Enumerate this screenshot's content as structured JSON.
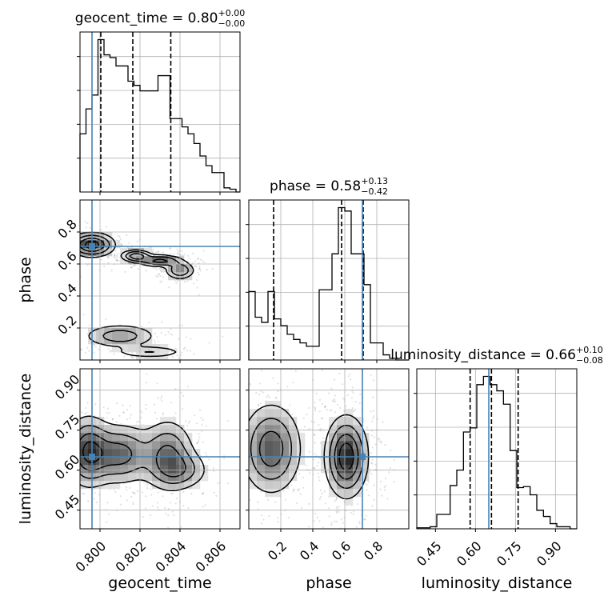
{
  "chart_data": {
    "type": "corner",
    "parameters": [
      "geocent_time",
      "phase",
      "luminosity_distance"
    ],
    "truths": {
      "geocent_time": 0.7996,
      "phase": 0.71,
      "luminosity_distance": 0.65
    },
    "truth_color": "#4682b4",
    "grid": true,
    "axes": {
      "geocent_time": {
        "lim": [
          0.799,
          0.807
        ],
        "ticks": [
          "0.800",
          "0.802",
          "0.804",
          "0.806"
        ],
        "tick_values": [
          0.8,
          0.802,
          0.804,
          0.806
        ]
      },
      "phase": {
        "lim": [
          0.0,
          1.0
        ],
        "ticks": [
          "0.2",
          "0.4",
          "0.6",
          "0.8"
        ],
        "tick_values": [
          0.2,
          0.4,
          0.6,
          0.8
        ]
      },
      "luminosity_distance": {
        "lim": [
          0.38,
          0.98
        ],
        "ticks": [
          "0.45",
          "0.60",
          "0.75",
          "0.90"
        ],
        "tick_values": [
          0.45,
          0.6,
          0.75,
          0.9
        ]
      }
    },
    "marginals": [
      {
        "parameter": "geocent_time",
        "title_param": "geocent_time = ",
        "title_value": "0.80",
        "title_plus": "+0.00",
        "title_minus": "−0.00",
        "quantiles": [
          0.80004,
          0.80164,
          0.80354
        ],
        "bins": [
          0.799,
          0.7993,
          0.7996,
          0.7999,
          0.8002,
          0.8005,
          0.8008,
          0.8011,
          0.8014,
          0.8017,
          0.802,
          0.8023,
          0.8026,
          0.8029,
          0.8032,
          0.8035,
          0.8038,
          0.8041,
          0.8044,
          0.8047,
          0.805,
          0.8053,
          0.8056,
          0.8059,
          0.8062,
          0.8065,
          0.8068,
          0.807
        ],
        "counts": [
          42,
          60,
          70,
          110,
          99,
          97,
          91,
          91,
          80,
          77,
          73,
          73,
          73,
          84,
          84,
          53,
          53,
          47,
          42,
          35,
          26,
          19,
          14,
          14,
          3,
          2,
          0
        ]
      },
      {
        "parameter": "phase",
        "title_param": "phase = ",
        "title_value": "0.58",
        "title_plus": "+0.13",
        "title_minus": "−0.42",
        "quantiles": [
          0.155,
          0.58,
          0.715
        ],
        "bins": [
          0.0,
          0.04,
          0.08,
          0.12,
          0.16,
          0.2,
          0.24,
          0.28,
          0.32,
          0.36,
          0.4,
          0.44,
          0.48,
          0.52,
          0.56,
          0.6,
          0.64,
          0.68,
          0.72,
          0.76,
          0.8,
          0.84,
          0.88,
          0.92,
          0.96,
          1.0
        ],
        "counts": [
          40,
          25,
          22,
          40,
          24,
          20,
          15,
          12,
          10,
          8,
          8,
          41,
          41,
          62,
          89,
          87,
          62,
          62,
          44,
          10,
          10,
          3,
          1,
          0,
          0
        ]
      },
      {
        "parameter": "luminosity_distance",
        "title_param": "luminosity_distance = ",
        "title_value": "0.66",
        "title_plus": "+0.10",
        "title_minus": "−0.08",
        "quantiles": [
          0.58,
          0.66,
          0.76
        ],
        "bins": [
          0.38,
          0.405,
          0.43,
          0.455,
          0.48,
          0.505,
          0.53,
          0.555,
          0.58,
          0.605,
          0.63,
          0.655,
          0.68,
          0.705,
          0.73,
          0.755,
          0.78,
          0.805,
          0.83,
          0.855,
          0.88,
          0.905,
          0.93,
          0.955,
          0.98
        ],
        "counts": [
          1,
          1,
          2,
          14,
          14,
          42,
          57,
          94,
          98,
          140,
          148,
          140,
          134,
          121,
          76,
          40,
          41,
          33,
          18,
          12,
          5,
          2,
          2,
          0
        ]
      }
    ],
    "contours": [
      {
        "x": "geocent_time",
        "y": "phase",
        "blobs": [
          {
            "cx": 0.7996,
            "cy": 0.72,
            "sx": 0.0006,
            "sy": 0.04,
            "w": 1.0
          },
          {
            "cx": 0.8018,
            "cy": 0.65,
            "sx": 0.0004,
            "sy": 0.02,
            "w": 0.8
          },
          {
            "cx": 0.803,
            "cy": 0.62,
            "sx": 0.0006,
            "sy": 0.02,
            "w": 0.7
          },
          {
            "cx": 0.804,
            "cy": 0.56,
            "sx": 0.0004,
            "sy": 0.03,
            "w": 0.6
          },
          {
            "cx": 0.801,
            "cy": 0.15,
            "sx": 0.001,
            "sy": 0.04,
            "w": 0.5
          },
          {
            "cx": 0.8025,
            "cy": 0.05,
            "sx": 0.001,
            "sy": 0.02,
            "w": 0.35
          }
        ]
      },
      {
        "x": "geocent_time",
        "y": "luminosity_distance",
        "blobs": [
          {
            "cx": 0.7994,
            "cy": 0.67,
            "sx": 0.0006,
            "sy": 0.07,
            "w": 1.0
          },
          {
            "cx": 0.801,
            "cy": 0.66,
            "sx": 0.0009,
            "sy": 0.06,
            "w": 0.85
          },
          {
            "cx": 0.8034,
            "cy": 0.66,
            "sx": 0.0007,
            "sy": 0.07,
            "w": 0.75
          },
          {
            "cx": 0.804,
            "cy": 0.6,
            "sx": 0.0008,
            "sy": 0.04,
            "w": 0.5
          }
        ]
      },
      {
        "x": "phase",
        "y": "luminosity_distance",
        "blobs": [
          {
            "cx": 0.61,
            "cy": 0.65,
            "sx": 0.07,
            "sy": 0.08,
            "w": 1.0
          },
          {
            "cx": 0.14,
            "cy": 0.68,
            "sx": 0.1,
            "sy": 0.09,
            "w": 0.75
          }
        ]
      }
    ]
  }
}
